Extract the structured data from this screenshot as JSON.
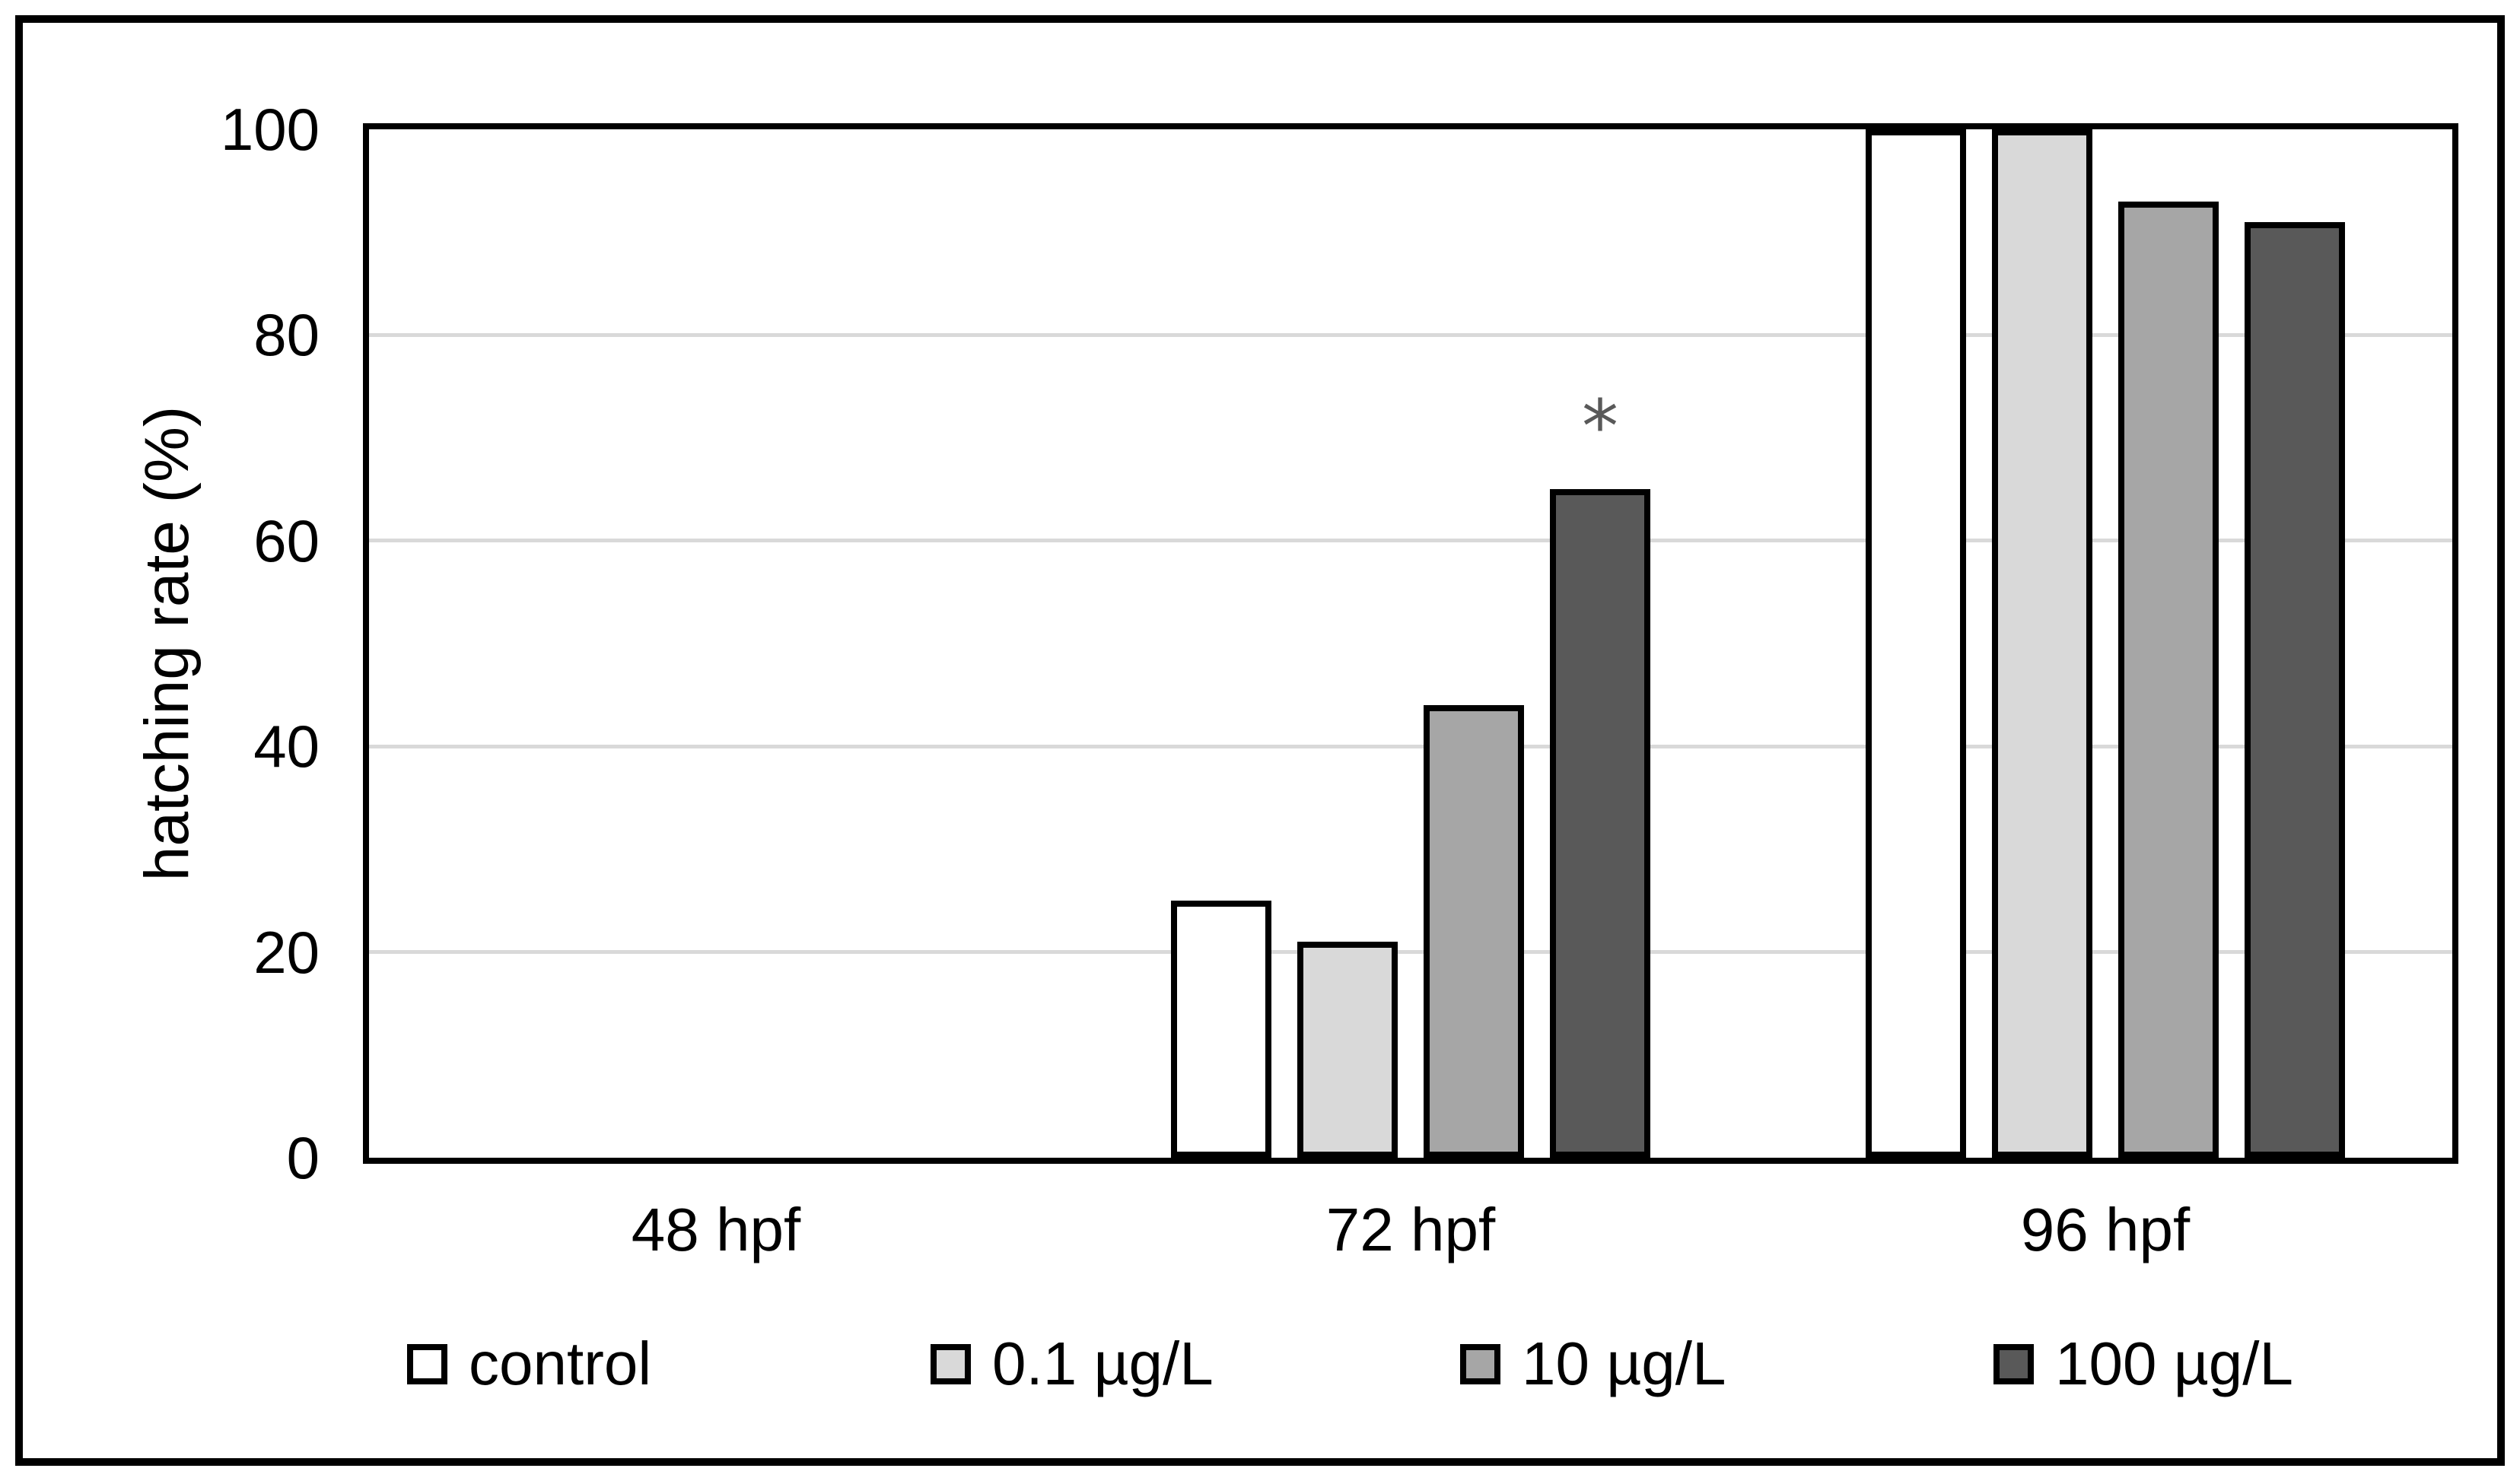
{
  "chart_data": {
    "type": "bar",
    "title": "",
    "categories": [
      "48 hpf",
      "72 hpf",
      "96 hpf"
    ],
    "series": [
      {
        "name": "control",
        "color": "#ffffff",
        "values": [
          0,
          25,
          100
        ]
      },
      {
        "name": "0.1 µg/L",
        "color": "#d9d9d9",
        "values": [
          0,
          21,
          100
        ]
      },
      {
        "name": "10 µg/L",
        "color": "#a6a6a6",
        "values": [
          0,
          44,
          93
        ]
      },
      {
        "name": "100 µg/L",
        "color": "#595959",
        "values": [
          0,
          65,
          91
        ]
      }
    ],
    "xlabel": "",
    "ylabel": "hatching rate (%)",
    "ylim": [
      0,
      100
    ],
    "yticks": [
      0,
      20,
      40,
      60,
      80,
      100
    ],
    "grid": true,
    "gridline_color": "#d9d9d9",
    "bar_outline_color": "#000000",
    "frame_color": "#000000",
    "legend_position": "bottom",
    "annotations": [
      {
        "text": "*",
        "category": "72 hpf",
        "series": "100 µg/L",
        "value": 65,
        "color": "#595959"
      }
    ]
  }
}
